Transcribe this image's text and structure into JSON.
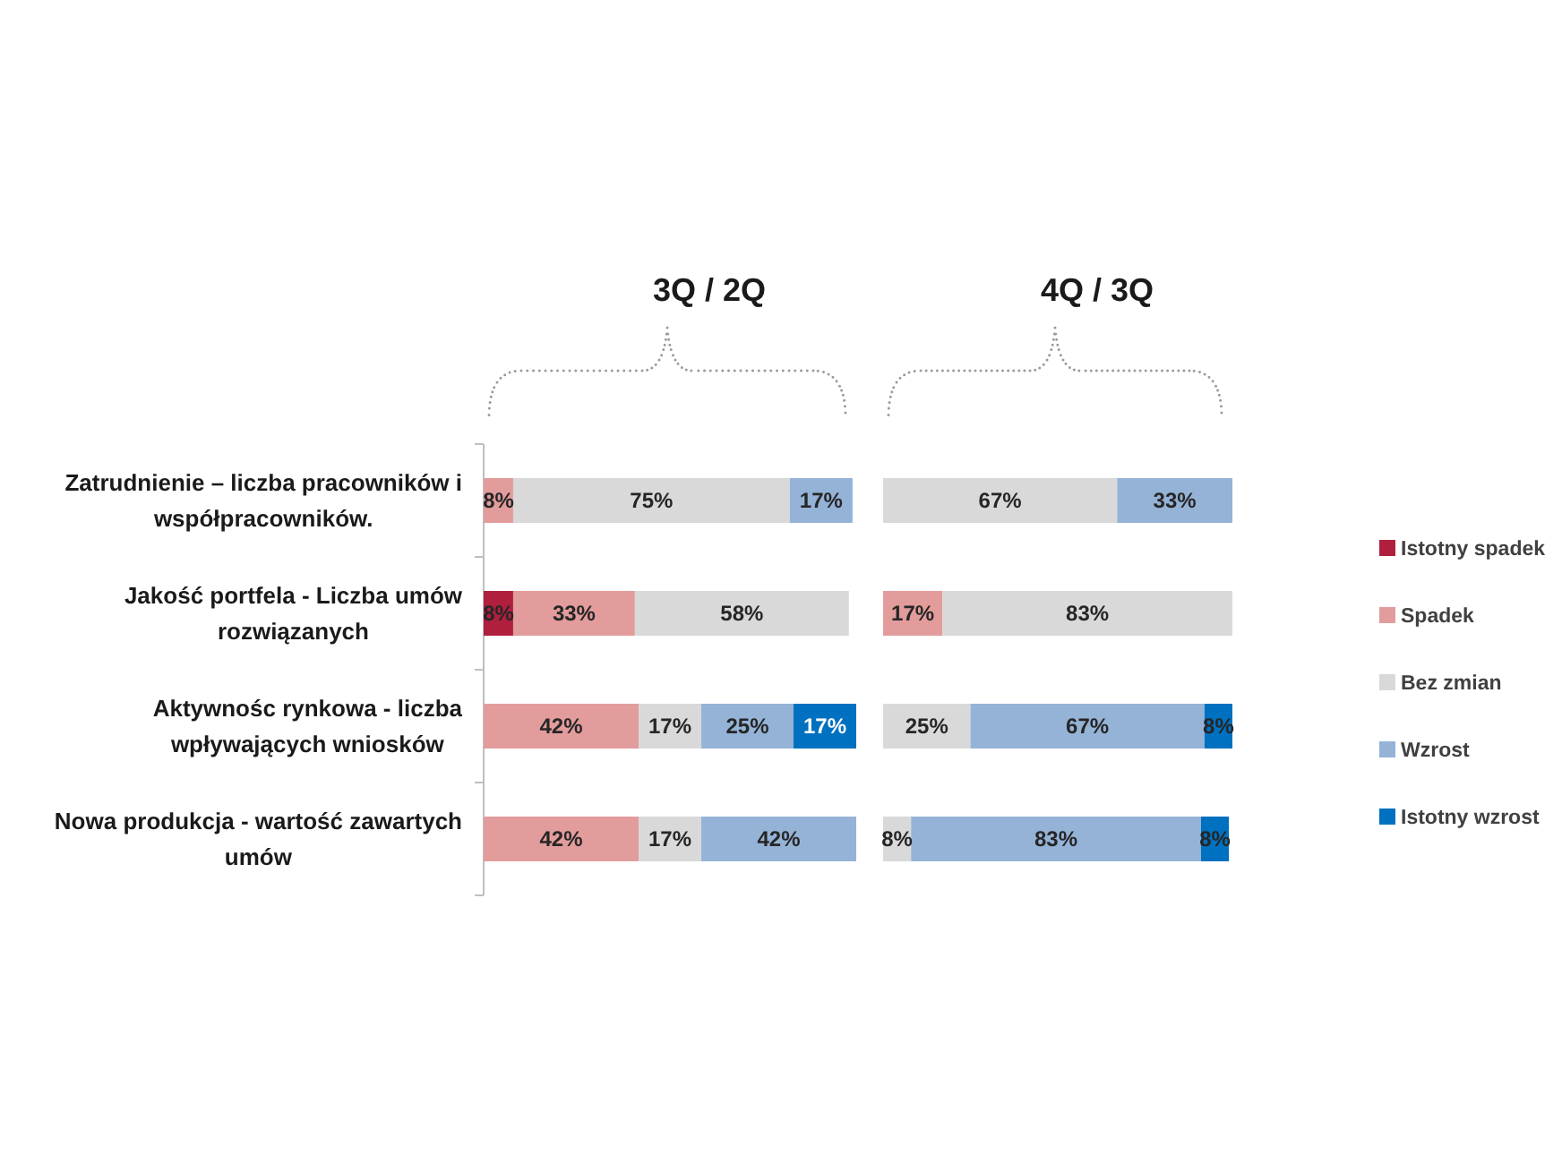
{
  "chart_data": [
    {
      "type": "bar",
      "title": "3Q / 2Q",
      "orientation": "horizontal",
      "stacked": true,
      "tick_labels": "y",
      "legend": "right",
      "categories": [
        "Zatrudnienie – liczba pracowników i współpracowników.",
        "Jakość portfela - Liczba umów rozwiązanych",
        "Aktywnośc rynkowa - liczba wpływających wniosków",
        "Nowa produkcja - wartość zawartych umów"
      ],
      "series": [
        {
          "name": "Istotny spadek",
          "color": "#b01f3e",
          "values": [
            null,
            8,
            null,
            null
          ],
          "value_labels": [
            null,
            "8%",
            null,
            null
          ]
        },
        {
          "name": "Spadek",
          "color": "#e39c9c",
          "values": [
            8,
            33,
            42,
            42
          ],
          "value_labels": [
            "8%",
            "33%",
            "42%",
            "42%"
          ]
        },
        {
          "name": "Bez zmian",
          "color": "#d9d9d9",
          "values": [
            75,
            58,
            17,
            17
          ],
          "value_labels": [
            "75%",
            "58%",
            "17%",
            "17%"
          ]
        },
        {
          "name": "Wzrost",
          "color": "#95b3d7",
          "values": [
            17,
            null,
            25,
            42
          ],
          "value_labels": [
            "17%",
            null,
            "25%",
            "42%"
          ]
        },
        {
          "name": "Istotny wzrost",
          "color": "#0070c0",
          "values": [
            null,
            null,
            17,
            null
          ],
          "value_labels": [
            null,
            null,
            "17%",
            null
          ]
        }
      ]
    },
    {
      "type": "bar",
      "title": "4Q / 3Q",
      "orientation": "horizontal",
      "stacked": true,
      "tick_labels": false,
      "categories": [
        null,
        null,
        null,
        null
      ],
      "series": [
        {
          "color": "#e39c9c",
          "values": [
            null,
            17,
            null,
            null
          ],
          "value_labels": [
            null,
            "17%",
            null,
            null
          ]
        },
        {
          "color": "#d9d9d9",
          "values": [
            67,
            83,
            25,
            8
          ],
          "value_labels": [
            "67%",
            "83%",
            "25%",
            "8%"
          ]
        },
        {
          "color": "#95b3d7",
          "values": [
            33,
            null,
            67,
            83
          ],
          "value_labels": [
            "33%",
            null,
            "67%",
            "83%"
          ]
        },
        {
          "color": "#0070c0",
          "values": [
            null,
            null,
            8,
            8
          ],
          "value_labels": [
            null,
            null,
            "8%",
            "8%"
          ]
        }
      ]
    }
  ]
}
